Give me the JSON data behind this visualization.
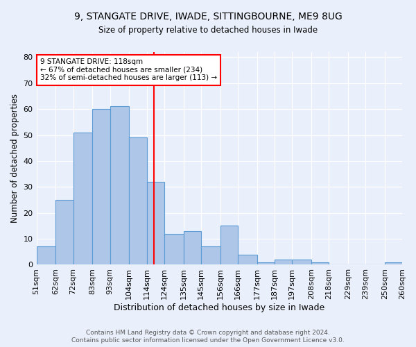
{
  "title1": "9, STANGATE DRIVE, IWADE, SITTINGBOURNE, ME9 8UG",
  "title2": "Size of property relative to detached houses in Iwade",
  "xlabel": "Distribution of detached houses by size in Iwade",
  "ylabel": "Number of detached properties",
  "bin_edges": [
    51,
    62,
    72,
    83,
    93,
    104,
    114,
    124,
    135,
    145,
    156,
    166,
    177,
    187,
    197,
    208,
    218,
    229,
    239,
    250,
    260
  ],
  "bar_heights": [
    7,
    25,
    51,
    60,
    61,
    49,
    32,
    12,
    13,
    7,
    15,
    4,
    1,
    2,
    2,
    1,
    0,
    0,
    0,
    1
  ],
  "ylim": [
    0,
    82
  ],
  "yticks": [
    0,
    10,
    20,
    30,
    40,
    50,
    60,
    70,
    80
  ],
  "bar_color": "#aec6e8",
  "bar_edge_color": "#5b9bd5",
  "vline_x": 118,
  "vline_color": "red",
  "annotation_text": "9 STANGATE DRIVE: 118sqm\n← 67% of detached houses are smaller (234)\n32% of semi-detached houses are larger (113) →",
  "footer1": "Contains HM Land Registry data © Crown copyright and database right 2024.",
  "footer2": "Contains public sector information licensed under the Open Government Licence v3.0.",
  "bg_color": "#eaf0fb",
  "plot_bg_color": "#eaf0fb"
}
